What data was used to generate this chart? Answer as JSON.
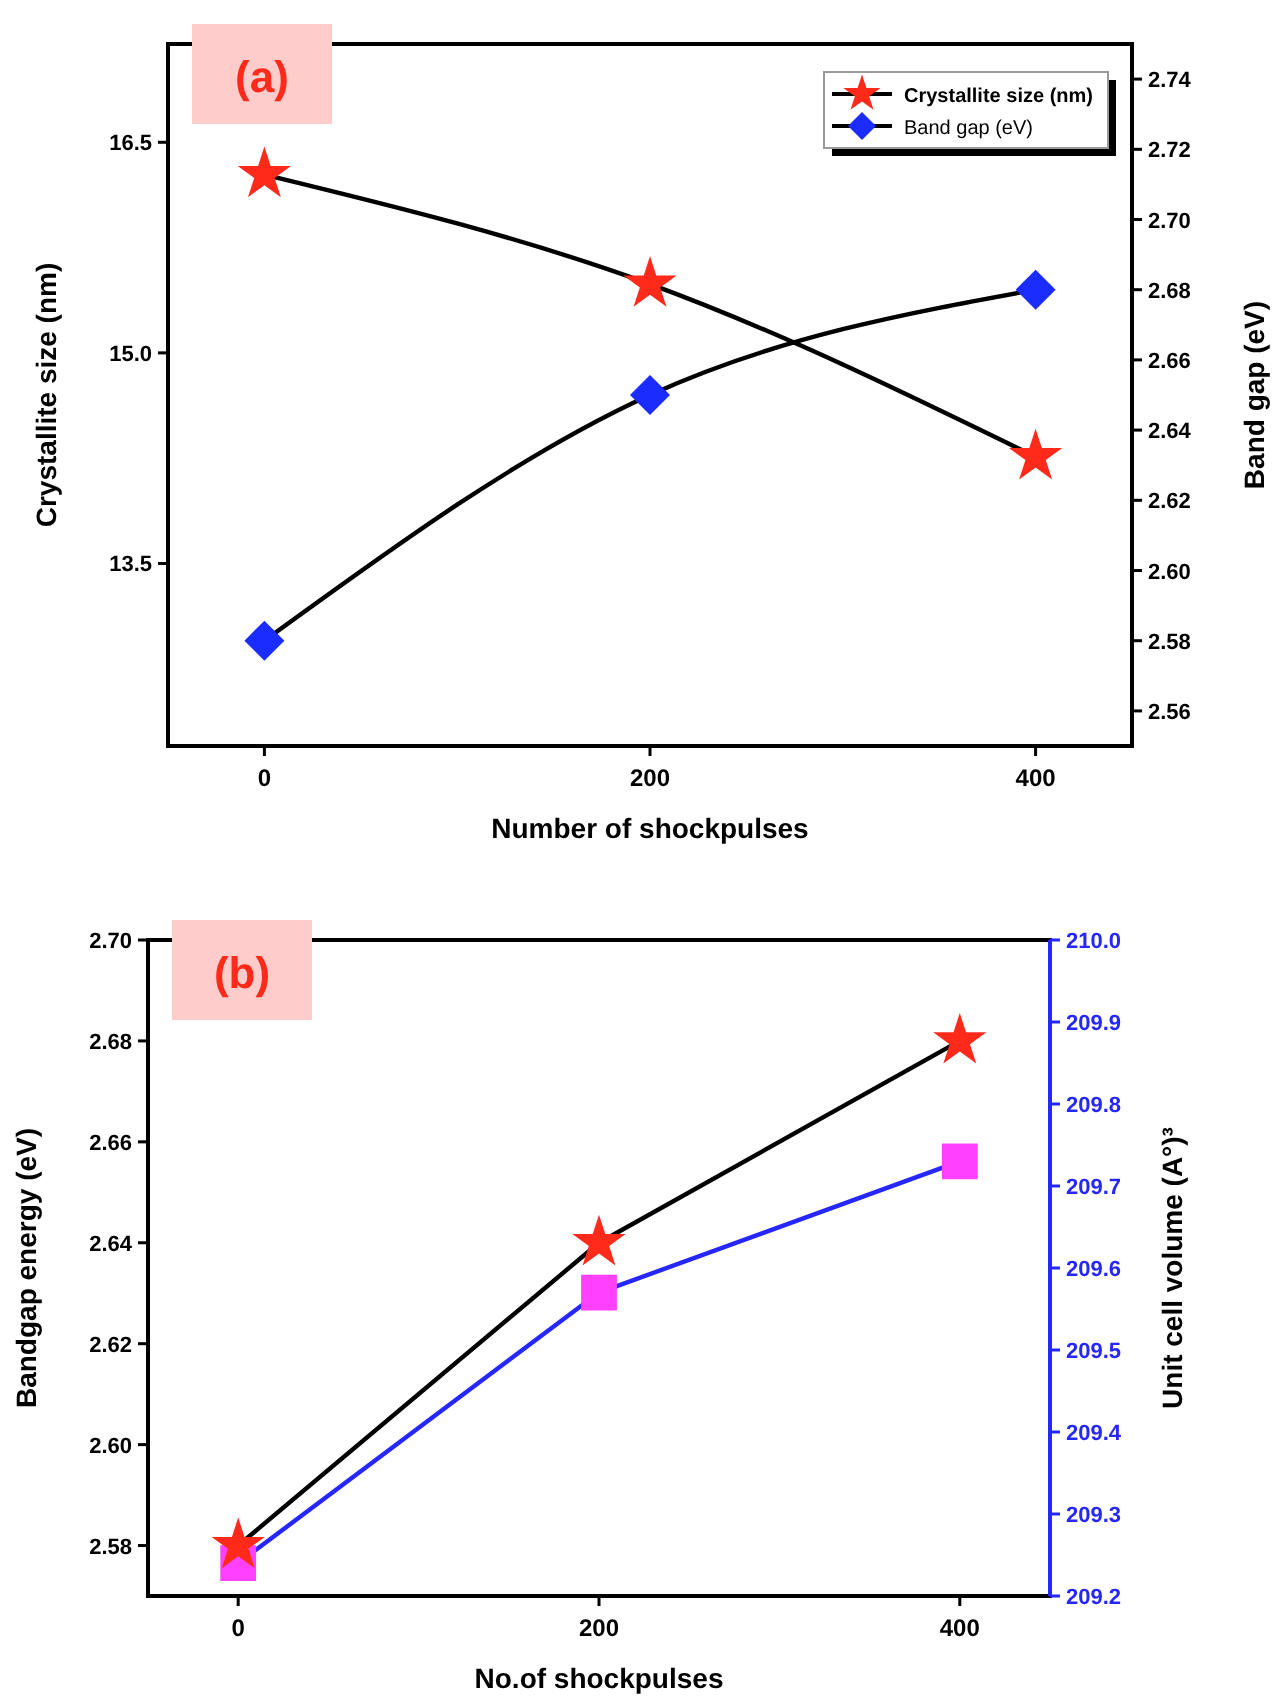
{
  "chart_data": [
    {
      "type": "line",
      "annotations": [
        "(a)"
      ],
      "xlabel": "Number of shockpulses",
      "ylabel": "Crystallite size (nm)",
      "y2label": "Band gap (eV)",
      "x": [
        0,
        200,
        400
      ],
      "xlim": [
        -50,
        450
      ],
      "xticks": [
        0,
        200,
        400
      ],
      "ylim": [
        12.2,
        17.2
      ],
      "yticks": [
        13.5,
        {
          "value": 15,
          "label": "15.0"
        },
        16.5
      ],
      "y2lim": [
        2.55,
        2.75
      ],
      "y2ticks": [
        2.56,
        2.58,
        {
          "value": 2.6,
          "label": "2.60"
        },
        2.62,
        2.64,
        2.66,
        2.68,
        {
          "value": 2.7,
          "label": "2.70"
        },
        2.72,
        2.74
      ],
      "legend": "top right",
      "grid": false,
      "line_style": "solid",
      "series": [
        {
          "name": "Crystallite size (nm)",
          "color": "#000000",
          "colors": [
            "#ff2a1a",
            "#ff2a1a",
            "#ff2a1a"
          ],
          "marker": "star",
          "values": [
            16.27,
            15.49,
            14.26
          ]
        },
        {
          "name": "Band gap (eV)",
          "color": "#000000",
          "colors": [
            "#1a2cff",
            "#1a2cff",
            "#1a2cff"
          ],
          "marker": "diamond",
          "axis": "y2",
          "values": [
            2.58,
            2.65,
            2.68
          ]
        }
      ]
    },
    {
      "type": "line",
      "annotations": [
        "(b)"
      ],
      "xlabel": "No.of shockpulses",
      "ylabel": "Bandgap energy (eV)",
      "y2label": "Unit cell volume (A°)³",
      "x": [
        0,
        200,
        400
      ],
      "xlim": [
        -50,
        450
      ],
      "xticks": [
        0,
        200,
        400
      ],
      "ylim": [
        2.57,
        2.7
      ],
      "yticks": [
        2.58,
        {
          "value": 2.6,
          "label": "2.60"
        },
        2.62,
        2.64,
        2.66,
        2.68,
        {
          "value": 2.7,
          "label": "2.70"
        }
      ],
      "y2lim": [
        209.2,
        210.0
      ],
      "y2ticks": [
        209.2,
        209.3,
        209.4,
        209.5,
        209.6,
        209.7,
        209.8,
        209.9,
        {
          "value": 210,
          "label": "210.0"
        }
      ],
      "grid": false,
      "line_style": "solid",
      "series": [
        {
          "color": "#000000",
          "colors": [
            "#ff2a1a",
            "#ff2a1a",
            "#ff2a1a"
          ],
          "marker": "star",
          "values": [
            2.58,
            2.64,
            2.68
          ]
        },
        {
          "color": "#2626ff",
          "colors": [
            "#ff40ff",
            "#ff40ff",
            "#ff40ff"
          ],
          "marker": "square",
          "axis": "y2",
          "values": [
            209.24,
            209.57,
            209.73
          ]
        }
      ]
    }
  ]
}
